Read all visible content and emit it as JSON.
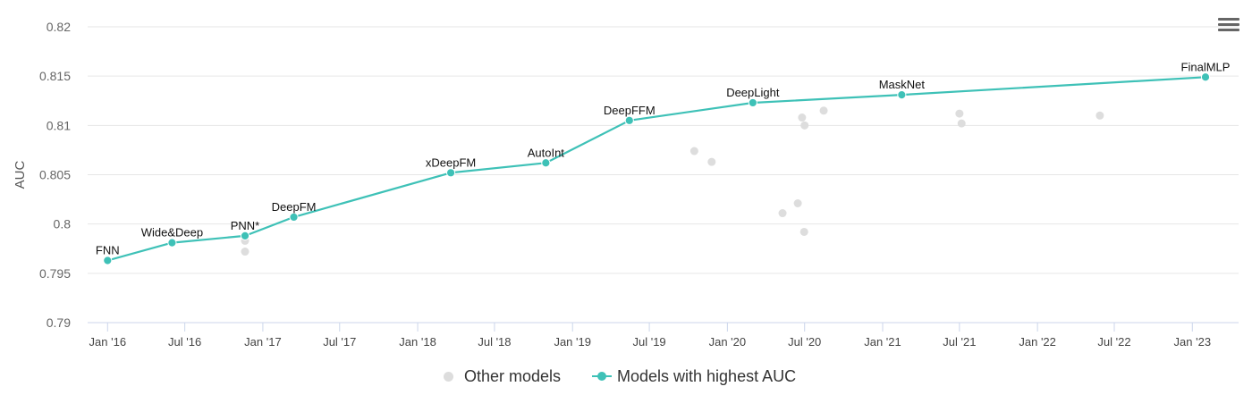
{
  "chart_data": {
    "type": "line",
    "title": "",
    "xlabel": "",
    "ylabel": "AUC",
    "ylim": [
      0.79,
      0.82
    ],
    "yticks": [
      "0.79",
      "0.795",
      "0.8",
      "0.805",
      "0.81",
      "0.815",
      "0.82"
    ],
    "xlim": [
      "2015-11-15",
      "2023-04-20"
    ],
    "xticks": [
      {
        "date": "2016-01-01",
        "label": "Jan '16"
      },
      {
        "date": "2016-07-01",
        "label": "Jul '16"
      },
      {
        "date": "2017-01-01",
        "label": "Jan '17"
      },
      {
        "date": "2017-07-01",
        "label": "Jul '17"
      },
      {
        "date": "2018-01-01",
        "label": "Jan '18"
      },
      {
        "date": "2018-07-01",
        "label": "Jul '18"
      },
      {
        "date": "2019-01-01",
        "label": "Jan '19"
      },
      {
        "date": "2019-07-01",
        "label": "Jul '19"
      },
      {
        "date": "2020-01-01",
        "label": "Jan '20"
      },
      {
        "date": "2020-07-01",
        "label": "Jul '20"
      },
      {
        "date": "2021-01-01",
        "label": "Jan '21"
      },
      {
        "date": "2021-07-01",
        "label": "Jul '21"
      },
      {
        "date": "2022-01-01",
        "label": "Jan '22"
      },
      {
        "date": "2022-07-01",
        "label": "Jul '22"
      },
      {
        "date": "2023-01-01",
        "label": "Jan '23"
      }
    ],
    "grid": true,
    "legend_position": "bottom-center",
    "series": [
      {
        "name": "Other models",
        "color": "#dddddd",
        "type": "scatter",
        "points": [
          {
            "x": "2016-11-20",
            "y": 0.7983
          },
          {
            "x": "2016-11-20",
            "y": 0.7972
          },
          {
            "x": "2019-10-15",
            "y": 0.8074
          },
          {
            "x": "2019-11-25",
            "y": 0.8063
          },
          {
            "x": "2020-05-10",
            "y": 0.8011
          },
          {
            "x": "2020-06-15",
            "y": 0.8021
          },
          {
            "x": "2020-06-25",
            "y": 0.8108
          },
          {
            "x": "2020-07-01",
            "y": 0.81
          },
          {
            "x": "2020-06-30",
            "y": 0.7992
          },
          {
            "x": "2020-08-15",
            "y": 0.8115
          },
          {
            "x": "2021-07-01",
            "y": 0.8112
          },
          {
            "x": "2021-07-06",
            "y": 0.8102
          },
          {
            "x": "2022-05-28",
            "y": 0.811
          }
        ]
      },
      {
        "name": "Models with highest AUC",
        "color": "#3ec1b7",
        "type": "line",
        "points": [
          {
            "x": "2016-01-01",
            "y": 0.7963,
            "label": "FNN"
          },
          {
            "x": "2016-06-01",
            "y": 0.7981,
            "label": "Wide&Deep"
          },
          {
            "x": "2016-11-20",
            "y": 0.7988,
            "label": "PNN*"
          },
          {
            "x": "2017-03-15",
            "y": 0.8007,
            "label": "DeepFM"
          },
          {
            "x": "2018-03-20",
            "y": 0.8052,
            "label": "xDeepFM"
          },
          {
            "x": "2018-10-30",
            "y": 0.8062,
            "label": "AutoInt"
          },
          {
            "x": "2019-05-15",
            "y": 0.8105,
            "label": "DeepFFM"
          },
          {
            "x": "2020-03-01",
            "y": 0.8123,
            "label": "DeepLight"
          },
          {
            "x": "2021-02-15",
            "y": 0.8131,
            "label": "MaskNet"
          },
          {
            "x": "2023-02-01",
            "y": 0.8149,
            "label": "FinalMLP"
          }
        ]
      }
    ]
  },
  "legend": {
    "other_label": "Other models",
    "best_label": "Models with highest AUC"
  },
  "menu_icon": "hamburger-menu-icon"
}
